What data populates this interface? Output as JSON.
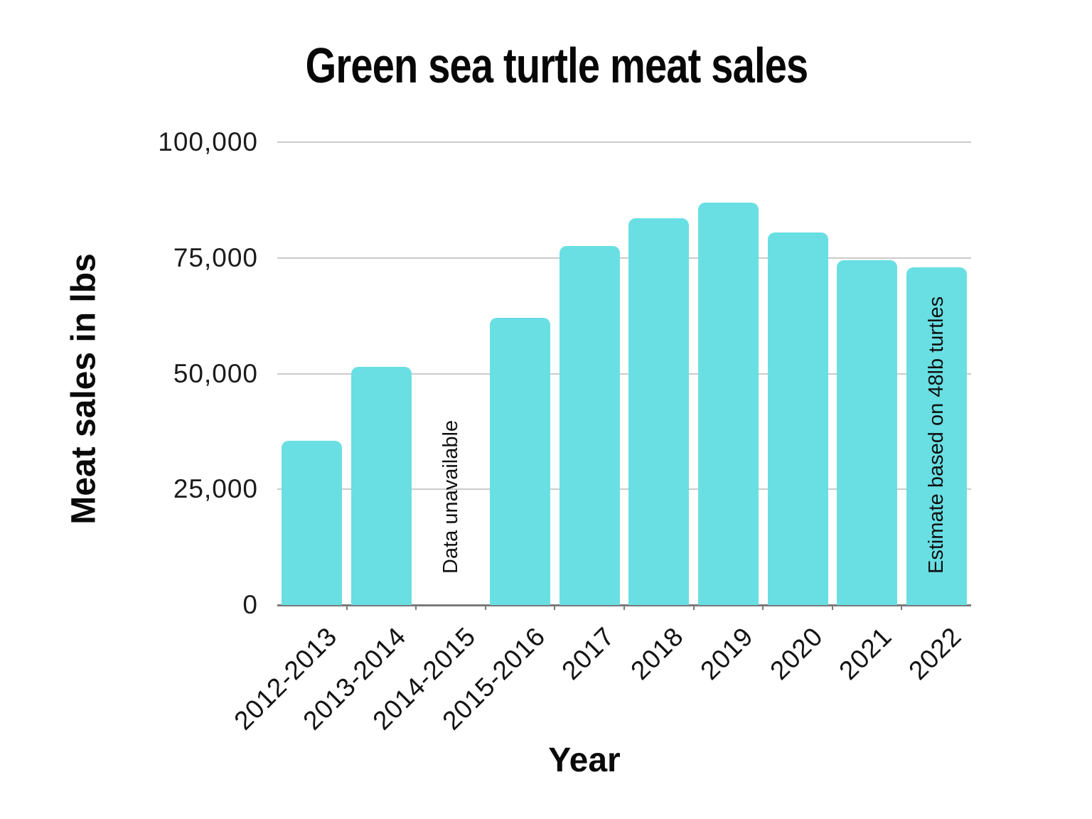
{
  "page": {
    "background": "#ffffff"
  },
  "chart_data": {
    "type": "bar",
    "title": "Green sea turtle meat sales",
    "xlabel": "Year",
    "ylabel": "Meat sales in lbs",
    "categories": [
      "2012-2013",
      "2013-2014",
      "2014-2015",
      "2015-2016",
      "2017",
      "2018",
      "2019",
      "2020",
      "2021",
      "2022"
    ],
    "values": [
      35500,
      51500,
      null,
      62000,
      77500,
      83500,
      87000,
      80500,
      74500,
      73000
    ],
    "ylim": [
      0,
      100000
    ],
    "yticks": [
      0,
      25000,
      50000,
      75000,
      100000
    ],
    "ytick_labels": [
      "0",
      "25,000",
      "50,000",
      "75,000",
      "100,000"
    ],
    "grid": true,
    "legend": false,
    "bar_color": "#69DFE3",
    "gridline_color": "#cbcbcb",
    "axis_line_color": "#7a7a7a",
    "annotations": [
      {
        "category": "2014-2015",
        "text": "Data unavailable"
      },
      {
        "category": "2022",
        "text": "Estimate based on 48lb turtles"
      }
    ]
  }
}
